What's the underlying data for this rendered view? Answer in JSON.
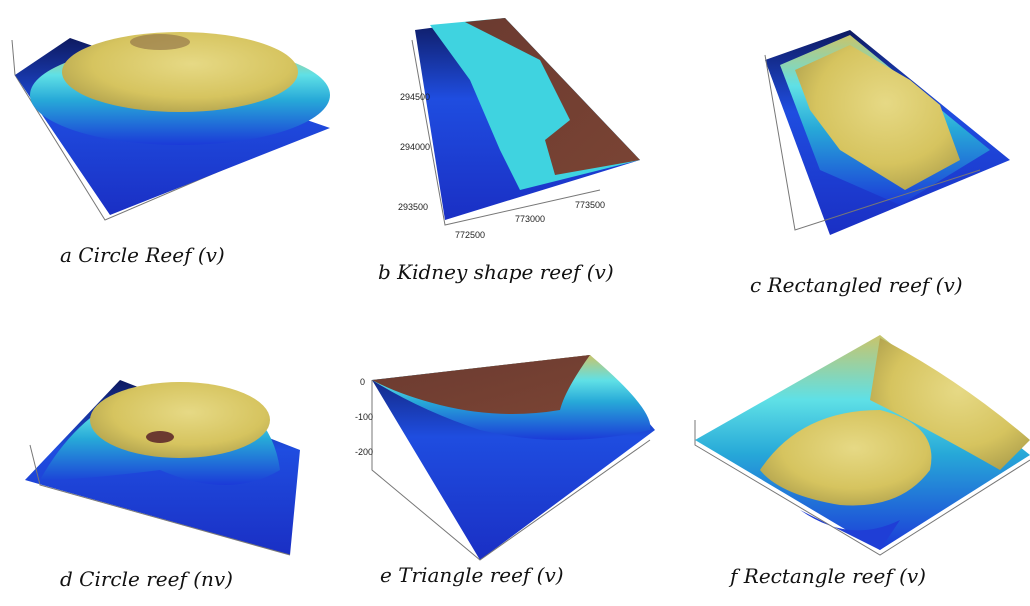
{
  "panels": [
    {
      "caption": "a Circle Reef (v)"
    },
    {
      "caption": "b Kidney shape reef (v)",
      "y_tick_labels": [
        "294500",
        "294000",
        "293500"
      ],
      "x_tick_labels": [
        "772500",
        "773000",
        "773500"
      ]
    },
    {
      "caption": "c Rectangled reef (v)"
    },
    {
      "caption": "d Circle reef (nv)"
    },
    {
      "caption": "e Triangle reef (v)",
      "y_tick_labels": [
        "0",
        "-100",
        "-200"
      ]
    },
    {
      "caption": "f Rectangle reef (v)"
    }
  ]
}
